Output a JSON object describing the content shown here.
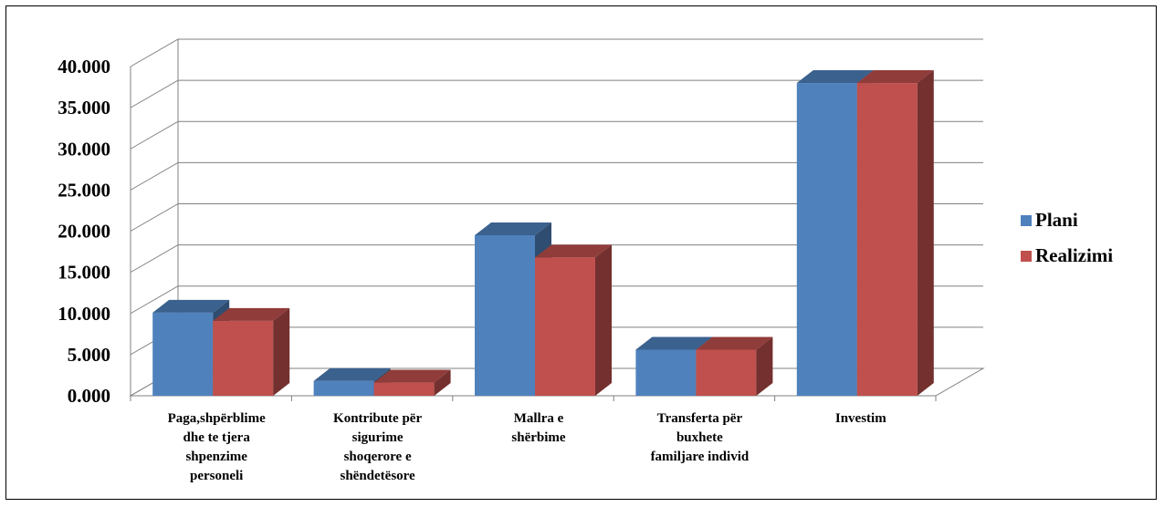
{
  "chart_data": {
    "type": "bar",
    "title": "",
    "xlabel": "",
    "ylabel": "",
    "ylim": [
      0,
      40000
    ],
    "y_ticks": [
      "0.000",
      "5.000",
      "10.000",
      "15.000",
      "20.000",
      "25.000",
      "30.000",
      "35.000",
      "40.000"
    ],
    "grid": true,
    "legend_position": "right",
    "categories": [
      [
        "Paga,shpërblime",
        "dhe te tjera",
        "shpenzime",
        "personeli"
      ],
      [
        "Kontribute për",
        "sigurime",
        "shoqerore  e",
        "shëndetësore"
      ],
      [
        "Mallra e",
        "shërbime"
      ],
      [
        "Transferta për",
        "buxhete",
        "familjare individ"
      ],
      [
        "Investim"
      ]
    ],
    "series": [
      {
        "name": "Plani",
        "color": "#4F81BD",
        "values": [
          10100,
          1800,
          19500,
          5600,
          38000
        ]
      },
      {
        "name": "Realizimi",
        "color": "#C0504D",
        "values": [
          9100,
          1600,
          16800,
          5600,
          38000
        ]
      }
    ]
  }
}
